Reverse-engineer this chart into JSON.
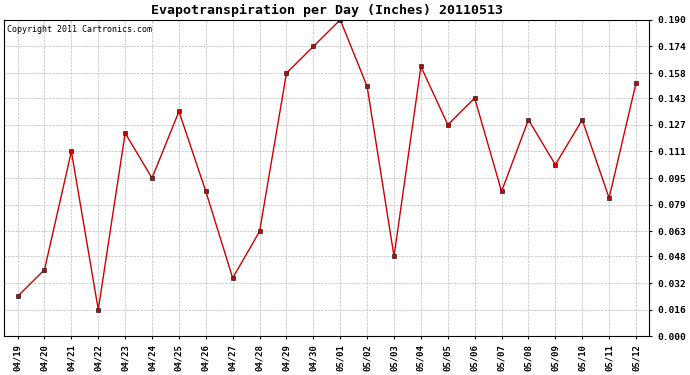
{
  "title": "Evapotranspiration per Day (Inches) 20110513",
  "copyright": "Copyright 2011 Cartronics.com",
  "x_labels": [
    "04/19",
    "04/20",
    "04/21",
    "04/22",
    "04/23",
    "04/24",
    "04/25",
    "04/26",
    "04/27",
    "04/28",
    "04/29",
    "04/30",
    "05/01",
    "05/02",
    "05/03",
    "05/04",
    "05/05",
    "05/06",
    "05/07",
    "05/08",
    "05/09",
    "05/10",
    "05/11",
    "05/12"
  ],
  "y_values": [
    0.024,
    0.04,
    0.111,
    0.016,
    0.122,
    0.095,
    0.135,
    0.087,
    0.035,
    0.063,
    0.158,
    0.174,
    0.19,
    0.15,
    0.048,
    0.162,
    0.127,
    0.143,
    0.087,
    0.13,
    0.103,
    0.13,
    0.083,
    0.152
  ],
  "line_color": "#cc0000",
  "marker_color": "#cc0000",
  "bg_color": "#ffffff",
  "grid_color": "#bbbbbb",
  "ylim_min": 0.0,
  "ylim_max": 0.19,
  "yticks": [
    0.0,
    0.016,
    0.032,
    0.048,
    0.063,
    0.079,
    0.095,
    0.111,
    0.127,
    0.143,
    0.158,
    0.174,
    0.19
  ],
  "title_fontsize": 9.5,
  "copyright_fontsize": 6.0,
  "tick_fontsize": 6.5,
  "ytick_fontsize": 6.8
}
